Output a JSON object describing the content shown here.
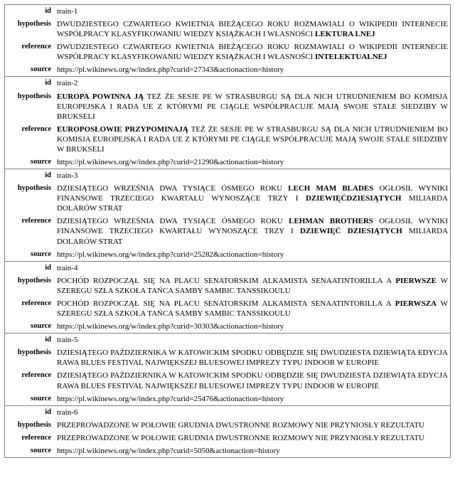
{
  "labels": {
    "id": "id",
    "hypothesis": "hypothesis",
    "reference": "reference",
    "source": "source"
  },
  "entries": [
    {
      "id": "train-1",
      "hypothesis": [
        {
          "t": "DWUDZIESTEGO CZWARTEGO KWIETNIA BIEŻĄCEGO ROKU ROZMAWIALI O WIKIPEDII INTERNECIE WSPÓŁPRACY KLASYFIKOWANIU WIEDZY KSIĄŻKACH I WŁASNOŚCI ",
          "b": false
        },
        {
          "t": "LEKTURA LNEJ",
          "b": true
        }
      ],
      "reference": [
        {
          "t": "DWUDZIESTEGO CZWARTEGO KWIETNIA BIEŻĄCEGO ROKU ROZMAWIALI O WIKIPEDII INTERNECIE WSPÓŁPRACY KLASYFIKOWANIU WIEDZY KSIĄŻKACH I WŁASNOŚCI ",
          "b": false
        },
        {
          "t": "INTELEKTUALNEJ",
          "b": true
        }
      ],
      "source": "https://pl.wikinews.org/w/index.php?curid=27343&actionaction=history"
    },
    {
      "id": "train-2",
      "hypothesis": [
        {
          "t": "EUROPA POWINNA JĄ",
          "b": true
        },
        {
          "t": " TEŻ ŻE SESJE PE W STRASBURGU SĄ DLA NICH UTRUDNIENIEM BO KOMISJA EUROPEJSKA I RADA UE Z KTÓRYMI PE CIĄGLE WSPÓŁPRACUJE MAJĄ SWOJE STAŁE SIEDZIBY W BRUKSELI",
          "b": false
        }
      ],
      "reference": [
        {
          "t": "EUROPOSŁOWIE PRZYPOMINAJĄ",
          "b": true
        },
        {
          "t": " TEŻ ŻE SESJE PE W STRASBURGU SĄ DLA NICH UTRUDNIENIEM BO KOMISJA EUROPEJSKA I RADA UE Z KTÓRYMI PE CIĄGLE WSPÓŁPRACUJE MAJĄ SWOJE STAŁE SIEDZIBY W BRUKSELI",
          "b": false
        }
      ],
      "source": "https://pl.wikinews.org/w/index.php?curid=21290&actionaction=history"
    },
    {
      "id": "train-3",
      "hypothesis": [
        {
          "t": "DZIESIĄTEGO WRZEŚNIA DWA TYSIĄCE ÓSMEGO ROKU ",
          "b": false
        },
        {
          "t": "LECH MAM BLADES",
          "b": true
        },
        {
          "t": " OGŁOSIŁ WYNIKI FINANSOWE TRZECIEGO KWARTAŁU WYNOSZĄCE TRZY I ",
          "b": false
        },
        {
          "t": "DZIEWIĘĆDZIESIĄTYCH",
          "b": true
        },
        {
          "t": " MILIARDA DOLARÓW STRAT",
          "b": false
        }
      ],
      "reference": [
        {
          "t": "DZIESIĄTEGO WRZEŚNIA DWA TYSIĄCE ÓSMEGO ROKU ",
          "b": false
        },
        {
          "t": "LEHMAN BROTHERS",
          "b": true
        },
        {
          "t": " OGŁOSIŁ WYNIKI FINANSOWE TRZECIEGO KWARTAŁU WYNOSZĄCE TRZY I ",
          "b": false
        },
        {
          "t": "DZIEWIĘĆ DZIESIĄTYCH",
          "b": true
        },
        {
          "t": " MILIARDA DOLARÓW STRAT",
          "b": false
        }
      ],
      "source": "https://pl.wikinews.org/w/index.php?curid=25282&actionaction=history"
    },
    {
      "id": "train-4",
      "hypothesis": [
        {
          "t": "POCHÓD ROZPOCZĄŁ SIĘ NA PLACU SENATORSKIM ALKAMISTA SENAATINTORILLA A ",
          "b": false
        },
        {
          "t": "PIERWSZE",
          "b": true
        },
        {
          "t": " W SZEREGU SZŁA SZKOŁA TAŃCA SAMBY SAMBIC TANSSIKOULU",
          "b": false
        }
      ],
      "reference": [
        {
          "t": "POCHÓD ROZPOCZĄŁ SIĘ NA PLACU SENATORSKIM ALKAMISTA SENAATINTORILLA A ",
          "b": false
        },
        {
          "t": "PIERWSZA",
          "b": true
        },
        {
          "t": " W SZEREGU SZŁA SZKOŁA TAŃCA SAMBY SAMBIC TANSSIKOULU",
          "b": false
        }
      ],
      "source": "https://pl.wikinews.org/w/index.php?curid=30303&actionaction=history"
    },
    {
      "id": "train-5",
      "hypothesis": [
        {
          "t": "DZIESIĄTEGO PAŹDZIERNIKA W KATOWICKIM SPODKU ODBĘDZIE SIĘ DWUDZIESTA DZIEWIĄTA EDYCJA RAWA BLUES FESTIVAL NAJWIĘKSZEJ BLUESOWEJ IMPREZY TYPU INDOOR W EUROPIE",
          "b": false
        }
      ],
      "reference": [
        {
          "t": "DZIESIĄTEGO PAŹDZIERNIKA W KATOWICKIM SPODKU ODBĘDZIE SIĘ DWUDZIESTA DZIEWIĄTA EDYCJA RAWA BLUES FESTIVAL NAJWIĘKSZEJ BLUESOWEJ IMPREZY TYPU INDOOR W EUROPIE",
          "b": false
        }
      ],
      "source": "https://pl.wikinews.org/w/index.php?curid=25476&actionaction=history"
    },
    {
      "id": "train-6",
      "hypothesis": [
        {
          "t": "PRZEPROWADZONE W POŁOWIE GRUDNIA DWUSTRONNE ROZMOWY NIE PRZYNIOSŁY REZULTATU",
          "b": false
        }
      ],
      "reference": [
        {
          "t": "PRZEPROWADZONE W POŁOWIE GRUDNIA DWUSTRONNE ROZMOWY NIE PRZYNIOSŁY REZULTATU",
          "b": false
        }
      ],
      "source": "https://pl.wikinews.org/w/index.php?curid=5050&actionaction=history"
    }
  ]
}
